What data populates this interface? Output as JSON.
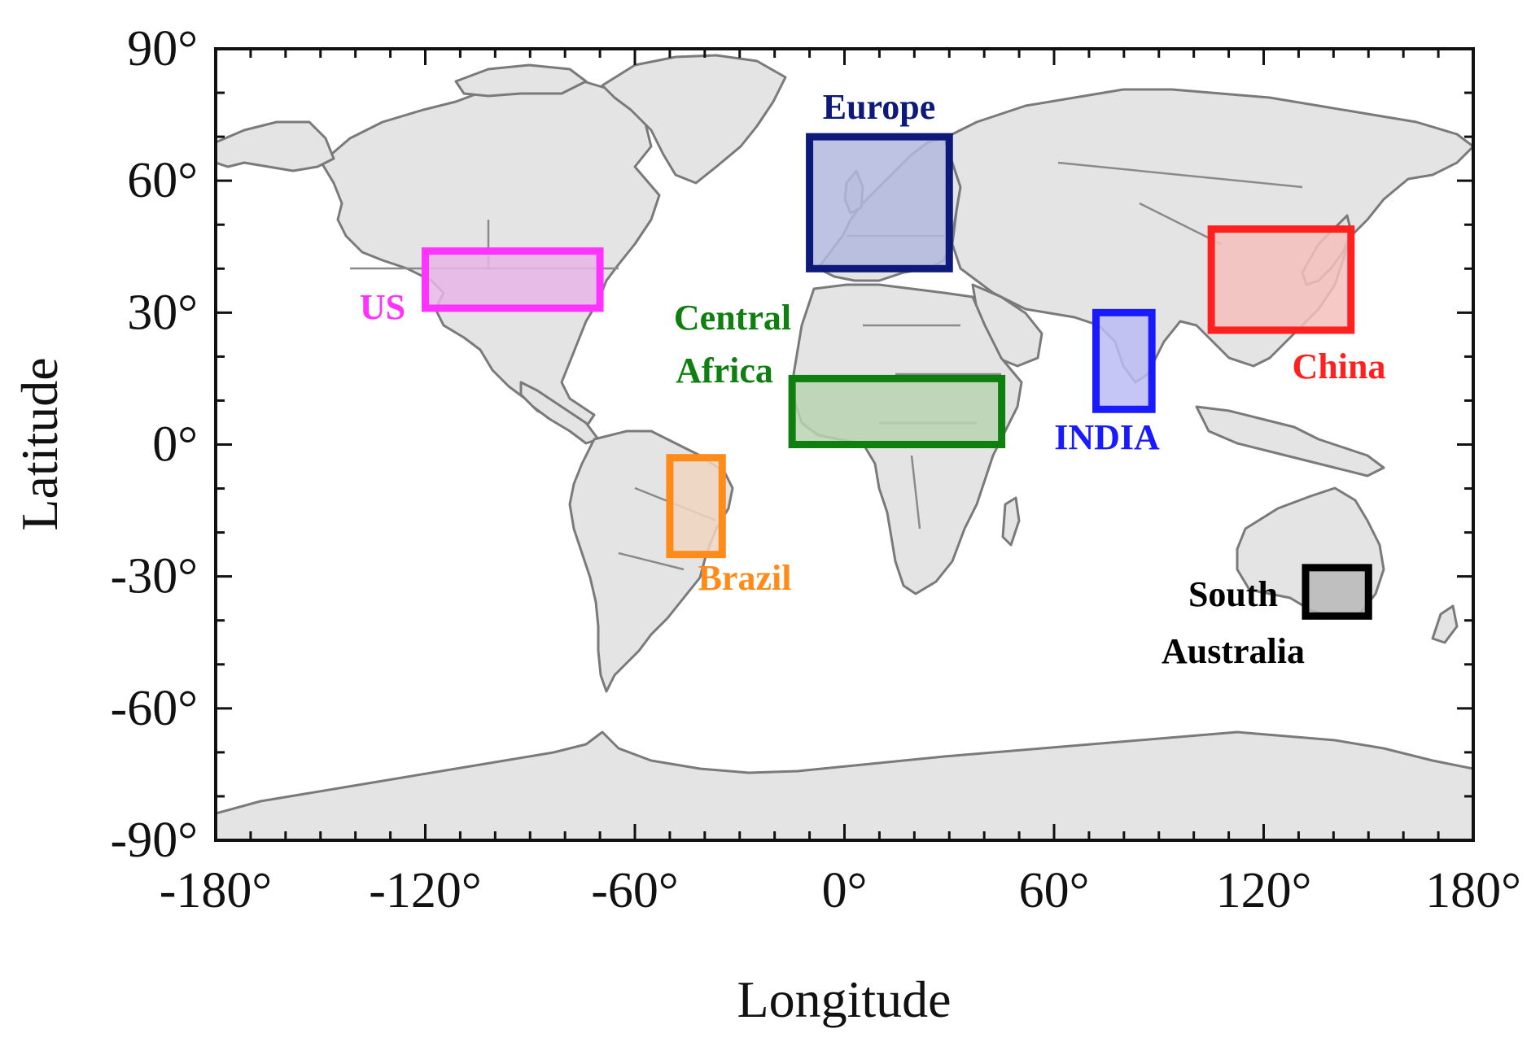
{
  "map": {
    "xlabel": "Longitude",
    "ylabel": "Latitude",
    "xlim": [
      -180,
      180
    ],
    "ylim": [
      -90,
      90
    ],
    "x_ticks": [
      {
        "value": -180,
        "label": "-180°"
      },
      {
        "value": -120,
        "label": "-120°"
      },
      {
        "value": -60,
        "label": "-60°"
      },
      {
        "value": 0,
        "label": "0°"
      },
      {
        "value": 60,
        "label": "60°"
      },
      {
        "value": 120,
        "label": "120°"
      },
      {
        "value": 180,
        "label": "180°"
      }
    ],
    "y_ticks": [
      {
        "value": 90,
        "label": "90°"
      },
      {
        "value": 60,
        "label": "60°"
      },
      {
        "value": 30,
        "label": "30°"
      },
      {
        "value": 0,
        "label": "0°"
      },
      {
        "value": -30,
        "label": "-30°"
      },
      {
        "value": -60,
        "label": "-60°"
      },
      {
        "value": -90,
        "label": "-90°"
      }
    ],
    "minor_tick_step": 10,
    "land_color": "#e4e4e4",
    "coast_color": "#7a7a7a"
  },
  "regions": [
    {
      "id": "us",
      "label_lines": [
        "US"
      ],
      "color": "#ff33ff",
      "fill": "#e8b6e8",
      "lon": [
        -120,
        -70
      ],
      "lat": [
        31,
        44
      ]
    },
    {
      "id": "europe",
      "label_lines": [
        "Europe"
      ],
      "color": "#0d1a7a",
      "fill": "#b4b8de",
      "lon": [
        -10,
        30
      ],
      "lat": [
        40,
        70
      ]
    },
    {
      "id": "central-africa",
      "label_lines": [
        "Central",
        "Africa"
      ],
      "color": "#0f7f0f",
      "fill": "#b8d4b2",
      "lon": [
        -15,
        45
      ],
      "lat": [
        0,
        15
      ]
    },
    {
      "id": "brazil",
      "label_lines": [
        "Brazil"
      ],
      "color": "#ff8c1a",
      "fill": "#f0d6c0",
      "lon": [
        -50,
        -35
      ],
      "lat": [
        -25,
        -3
      ]
    },
    {
      "id": "india",
      "label_lines": [
        "INDIA"
      ],
      "color": "#1a1aff",
      "fill": "#bcbcf4",
      "lon": [
        72,
        88
      ],
      "lat": [
        8,
        30
      ]
    },
    {
      "id": "china",
      "label_lines": [
        "China"
      ],
      "color": "#ff2020",
      "fill": "#f6c0bc",
      "lon": [
        105,
        145
      ],
      "lat": [
        26,
        49
      ]
    },
    {
      "id": "south-australia",
      "label_lines": [
        "South",
        "Australia"
      ],
      "color": "#000000",
      "fill": "#b8b8b8",
      "lon": [
        132,
        150
      ],
      "lat": [
        -39,
        -28
      ]
    }
  ]
}
